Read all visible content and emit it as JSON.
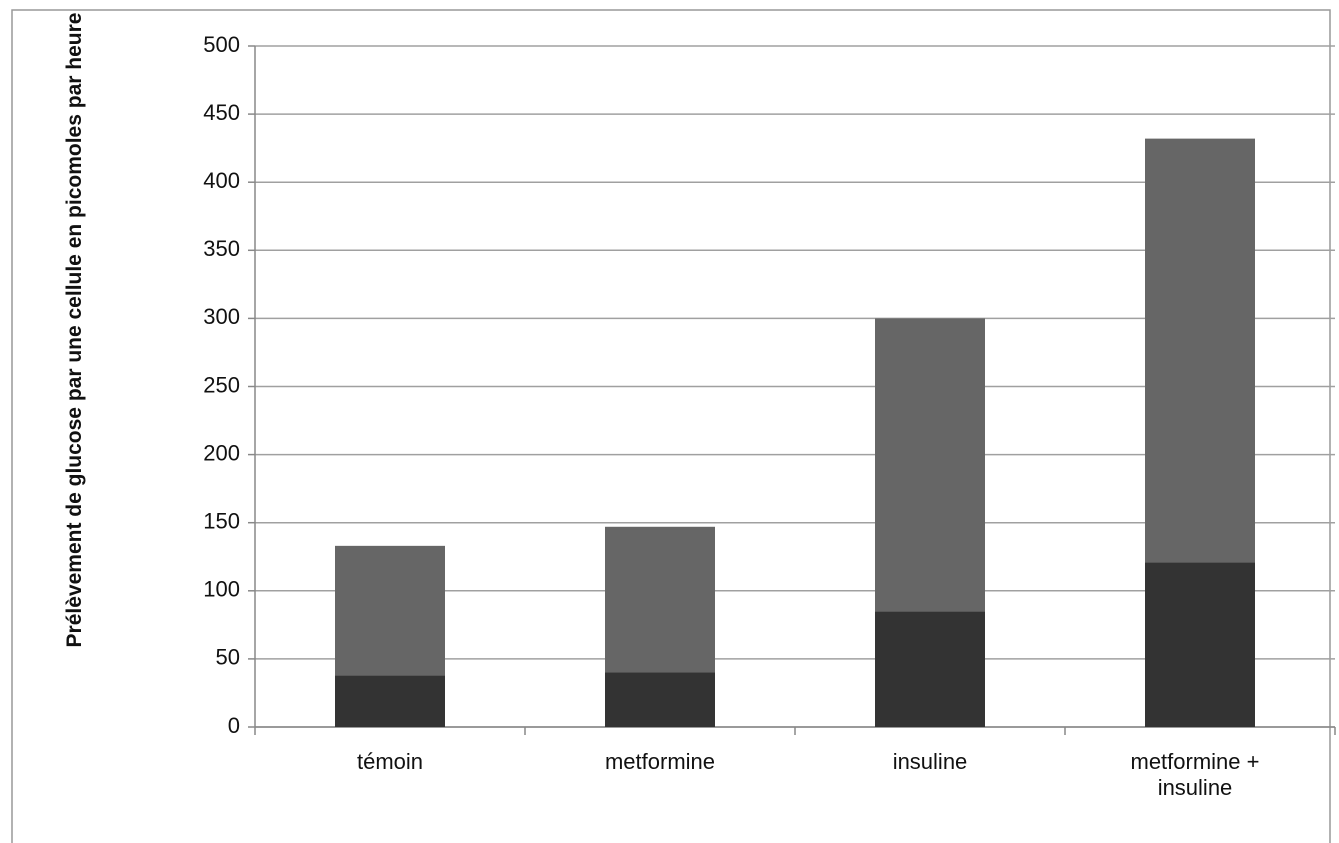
{
  "chart_data": {
    "type": "stacked_bar",
    "y_label": "Prélèvement de glucose par une cellule en picomoles par heure",
    "categories": [
      "témoin",
      "metformine",
      "insuline",
      "metformine + insuline"
    ],
    "series": [
      {
        "color": "#333333",
        "values": [
          38,
          40,
          85,
          121
        ]
      },
      {
        "color": "#666666",
        "values": [
          95,
          107,
          215,
          311
        ]
      }
    ],
    "ylim": [
      0,
      500
    ],
    "yticks": [
      0,
      50,
      100,
      150,
      200,
      250,
      300,
      350,
      400,
      450,
      500
    ],
    "grid": true
  }
}
